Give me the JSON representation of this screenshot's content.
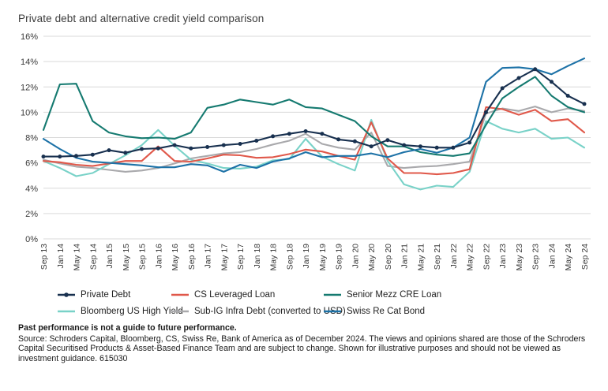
{
  "title": "Private debt and alternative credit yield comparison",
  "footer": {
    "disclaimer": "Past performance is not a guide to future performance.",
    "source": "Source: Schroders Capital, Bloomberg, CS, Swiss Re, Bank of America as of December 2024. The views and opinions shared are those of the Schroders Capital Securitised Products & Asset-Based Finance Team and are subject to change. Shown for illustrative purposes and should not be viewed as investment guidance. 615030"
  },
  "chart_data": {
    "type": "line",
    "title": "Private debt and alternative credit yield comparison",
    "xlabel": "",
    "ylabel": "",
    "ylim": [
      0,
      16
    ],
    "ytick_step": 2,
    "ytick_suffix": "%",
    "grid": "horizontal",
    "grid_color": "#d9d9d9",
    "legend_position": "bottom",
    "categories": [
      "Sep 13",
      "Jan 14",
      "May 14",
      "Sep 14",
      "Jan 15",
      "May 15",
      "Sep 15",
      "Jan 16",
      "May 16",
      "Sep 16",
      "Jan 17",
      "May 17",
      "Sep 17",
      "Jan 18",
      "May 18",
      "Sep 18",
      "Jan 19",
      "May 19",
      "Sep 19",
      "Jan 20",
      "May 20",
      "Sep 20",
      "Jan 21",
      "May 21",
      "Sep 21",
      "Jan 22",
      "May 22",
      "Sep 22",
      "Jan 23",
      "May 23",
      "Sep 23",
      "Jan 24",
      "May 24",
      "Sep 24"
    ],
    "series": [
      {
        "name": "Private Debt",
        "color": "#18304f",
        "marker": true,
        "values": [
          6.5,
          6.5,
          6.55,
          6.65,
          7.0,
          6.8,
          7.1,
          7.15,
          7.4,
          7.15,
          7.25,
          7.4,
          7.5,
          7.75,
          8.1,
          8.3,
          8.5,
          8.3,
          7.85,
          7.7,
          7.3,
          7.8,
          7.4,
          7.3,
          7.2,
          7.2,
          7.6,
          10.0,
          11.9,
          12.7,
          13.4,
          12.4,
          11.3,
          10.65
        ]
      },
      {
        "name": "CS Leveraged Loan",
        "color": "#e0584a",
        "marker": false,
        "values": [
          6.15,
          6.05,
          5.85,
          5.75,
          5.95,
          6.15,
          6.15,
          7.3,
          6.15,
          6.1,
          6.35,
          6.65,
          6.6,
          6.4,
          6.45,
          6.7,
          7.05,
          6.9,
          6.55,
          6.25,
          9.2,
          6.35,
          5.2,
          5.2,
          5.1,
          5.2,
          5.5,
          10.4,
          10.25,
          9.8,
          10.2,
          9.3,
          9.45,
          8.4
        ]
      },
      {
        "name": "Senior Mezz CRE Loan",
        "color": "#157a70",
        "marker": false,
        "values": [
          8.6,
          12.2,
          12.25,
          9.3,
          8.4,
          8.1,
          7.95,
          8.0,
          7.9,
          8.4,
          10.35,
          10.6,
          11.0,
          10.8,
          10.6,
          11.0,
          10.4,
          10.3,
          9.8,
          9.3,
          8.1,
          7.3,
          7.3,
          6.85,
          6.65,
          6.55,
          6.75,
          9.0,
          11.1,
          12.0,
          12.8,
          11.3,
          10.4,
          10.0
        ]
      },
      {
        "name": "Bloomberg US High Yield",
        "color": "#79d2c8",
        "marker": false,
        "values": [
          6.15,
          5.6,
          4.95,
          5.2,
          5.9,
          6.6,
          7.4,
          8.6,
          7.35,
          6.25,
          5.95,
          5.6,
          5.55,
          5.7,
          6.2,
          6.3,
          7.9,
          6.5,
          5.9,
          5.4,
          9.4,
          6.15,
          4.3,
          3.9,
          4.2,
          4.1,
          5.3,
          9.3,
          8.7,
          8.4,
          8.7,
          7.9,
          8.0,
          7.2
        ]
      },
      {
        "name": "Sub-IG Infra Debt (converted to USD)",
        "color": "#a9a9ac",
        "marker": false,
        "values": [
          6.25,
          5.95,
          5.7,
          5.6,
          5.45,
          5.3,
          5.4,
          5.6,
          5.95,
          6.35,
          6.55,
          6.75,
          6.85,
          7.1,
          7.45,
          7.75,
          8.3,
          7.5,
          7.2,
          7.05,
          8.4,
          5.75,
          5.6,
          5.7,
          5.75,
          5.9,
          6.1,
          9.9,
          10.3,
          10.1,
          10.45,
          10.0,
          10.3,
          10.1
        ]
      },
      {
        "name": "Swiss Re Cat Bond",
        "color": "#1d72a7",
        "marker": false,
        "values": [
          7.9,
          7.1,
          6.4,
          6.1,
          6.0,
          5.9,
          5.8,
          5.65,
          5.65,
          5.9,
          5.8,
          5.3,
          5.85,
          5.6,
          6.1,
          6.35,
          6.85,
          6.45,
          6.55,
          6.55,
          6.75,
          6.45,
          6.85,
          7.1,
          6.8,
          7.2,
          8.0,
          12.4,
          13.5,
          13.55,
          13.4,
          13.0,
          13.65,
          14.25
        ]
      }
    ],
    "draw_order": [
      4,
      3,
      1,
      2,
      5,
      0
    ]
  }
}
